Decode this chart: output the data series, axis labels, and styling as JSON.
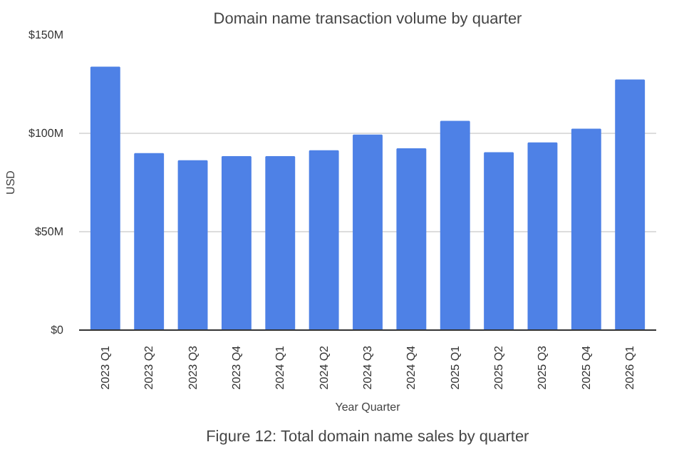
{
  "chart_data": {
    "type": "bar",
    "title": "Domain name transaction volume by quarter",
    "xlabel": "Year Quarter",
    "ylabel": "USD",
    "annotations": [
      "Figure 12: Total domain name sales by quarter"
    ],
    "categories": [
      "2023 Q1",
      "2023 Q2",
      "2023 Q3",
      "2023 Q4",
      "2024 Q1",
      "2024 Q2",
      "2024 Q3",
      "2024 Q4",
      "2025 Q1",
      "2025 Q2",
      "2025 Q3",
      "2025 Q4",
      "2026 Q1"
    ],
    "values": [
      133.5,
      89.6,
      86,
      88,
      88,
      91,
      99,
      92,
      106,
      90,
      95,
      102,
      127
    ],
    "color": "#4e81e6",
    "ylim": [
      0,
      150
    ],
    "yticks": [
      {
        "value": 0,
        "label": "$0"
      },
      {
        "value": 50,
        "label": "$50M"
      },
      {
        "value": 100,
        "label": "$100M"
      },
      {
        "value": 150,
        "label": "$150M"
      }
    ],
    "grid": "y"
  }
}
